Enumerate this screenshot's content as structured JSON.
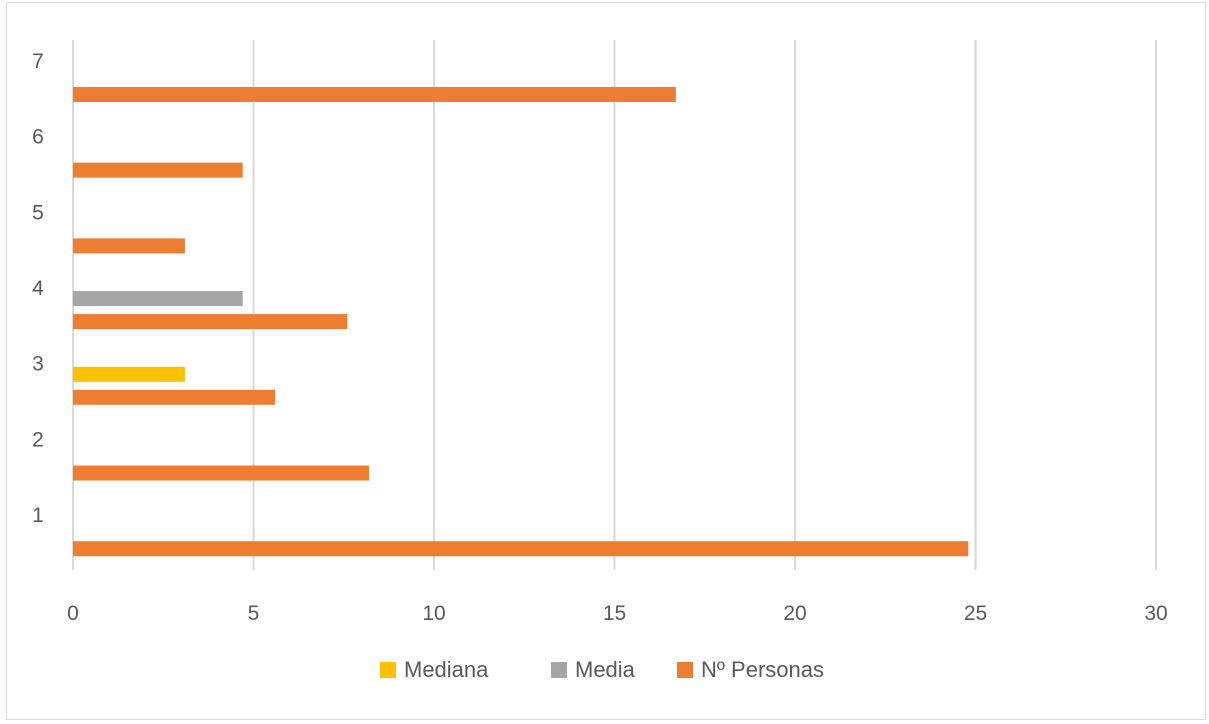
{
  "chart_data": {
    "type": "bar",
    "orientation": "horizontal",
    "title": "",
    "xlabel": "",
    "ylabel": "",
    "categories": [
      "1",
      "2",
      "3",
      "4",
      "5",
      "6",
      "7"
    ],
    "xlim": [
      0,
      30
    ],
    "x_ticks": [
      "0",
      "5",
      "10",
      "15",
      "20",
      "25",
      "30"
    ],
    "grid": "vertical",
    "legend_position": "bottom",
    "series": [
      {
        "name": "Mediana",
        "color": "#FFC000",
        "values": [
          null,
          null,
          3.1,
          null,
          null,
          null,
          null
        ]
      },
      {
        "name": "Media",
        "color": "#A5A5A5",
        "values": [
          null,
          null,
          null,
          4.7,
          null,
          null,
          null
        ]
      },
      {
        "name": "Nº Personas",
        "color": "#ED7D31",
        "values": [
          24.8,
          8.2,
          5.6,
          7.6,
          3.1,
          4.7,
          16.7
        ]
      }
    ]
  }
}
